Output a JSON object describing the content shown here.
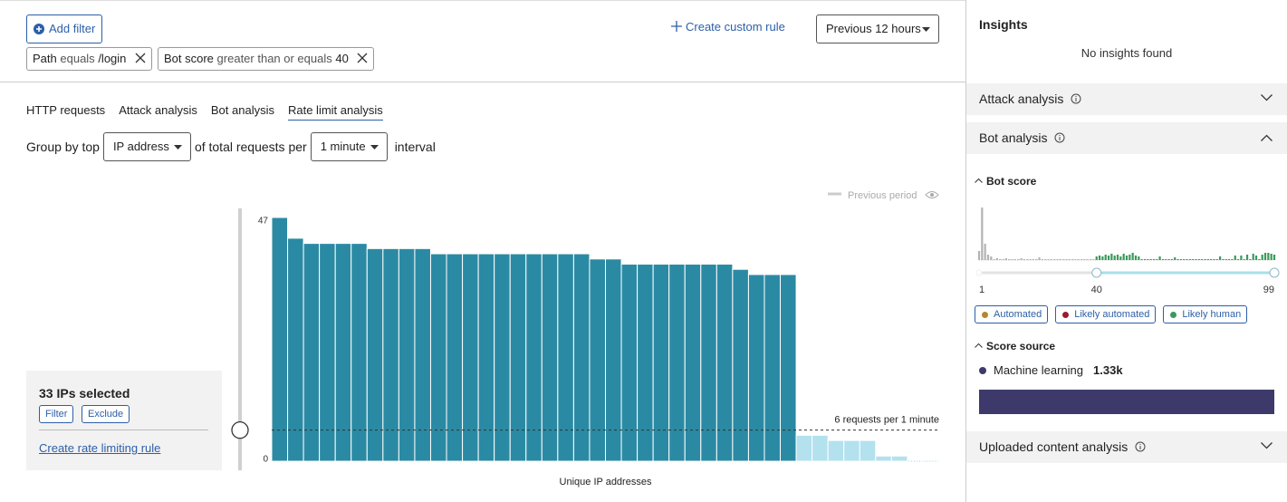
{
  "filters": {
    "add_filter": "Add filter",
    "items": [
      {
        "field": "Path",
        "operator": "equals",
        "value": "/login"
      },
      {
        "field": "Bot score",
        "operator": "greater than or equals",
        "value": "40"
      }
    ],
    "create_rule": "Create custom rule",
    "time_range": "Previous 12 hours"
  },
  "tabs": {
    "items": [
      "HTTP requests",
      "Attack analysis",
      "Bot analysis",
      "Rate limit analysis"
    ],
    "active": 3
  },
  "group_by": {
    "prefix": "Group by top",
    "field": "IP address",
    "middle": "of total requests per",
    "interval": "1 minute",
    "suffix": "interval"
  },
  "chart_data": {
    "type": "bar",
    "legend": "Previous period",
    "x_label": "Unique IP addresses",
    "ylim": [
      0,
      47
    ],
    "yticks": [
      0,
      47
    ],
    "values": [
      47,
      43,
      42,
      42,
      42,
      42,
      41,
      41,
      41,
      41,
      40,
      40,
      40,
      40,
      40,
      40,
      40,
      40,
      40,
      40,
      39,
      39,
      38,
      38,
      38,
      38,
      38,
      38,
      38,
      37,
      36,
      36,
      36,
      5,
      5,
      4,
      4,
      4,
      1,
      1,
      0,
      0
    ],
    "selected_count": 33,
    "selected_color": "#2b8aa3",
    "other_color": "#b3e1ee",
    "threshold": 6,
    "threshold_label": "6 requests per 1 minute"
  },
  "selection": {
    "title": "33 IPs selected",
    "filter": "Filter",
    "exclude": "Exclude",
    "link": "Create rate limiting rule"
  },
  "insights": {
    "title": "Insights",
    "empty": "No insights found",
    "attack": "Attack analysis",
    "bot": "Bot analysis",
    "bot_score": {
      "type": "bar",
      "title": "Bot score",
      "values": [
        10,
        58,
        18,
        6,
        4,
        1,
        2,
        1,
        1,
        2,
        1,
        1,
        1,
        1,
        2,
        1,
        1,
        1,
        1,
        1,
        3,
        1,
        1,
        1,
        1,
        1,
        1,
        1,
        1,
        1,
        1,
        1,
        1,
        1,
        1,
        1,
        1,
        1,
        1,
        4,
        5,
        4,
        6,
        5,
        7,
        5,
        6,
        4,
        7,
        5,
        6,
        8,
        5,
        4,
        1,
        1,
        1,
        1,
        1,
        1,
        4,
        1,
        1,
        1,
        1,
        3,
        1,
        1,
        1,
        1,
        1,
        1,
        1,
        1,
        1,
        1,
        1,
        1,
        1,
        1,
        4,
        1,
        1,
        1,
        1,
        5,
        1,
        5,
        1,
        6,
        1,
        7,
        5,
        1,
        6,
        8,
        8,
        7,
        6
      ],
      "xlim": [
        1,
        99
      ],
      "xticks": [
        1,
        40,
        99
      ],
      "low_color": "#b3b3b3",
      "high_color": "#3a9a5b",
      "legend": [
        {
          "name": "Automated",
          "color": "#b8862b"
        },
        {
          "name": "Likely automated",
          "color": "#9b1c2e"
        },
        {
          "name": "Likely human",
          "color": "#3a9a5b"
        }
      ]
    },
    "score_source": {
      "title": "Score source",
      "name": "Machine learning",
      "value": "1.33k",
      "color": "#3d3a6b"
    },
    "uploaded": "Uploaded content analysis"
  }
}
